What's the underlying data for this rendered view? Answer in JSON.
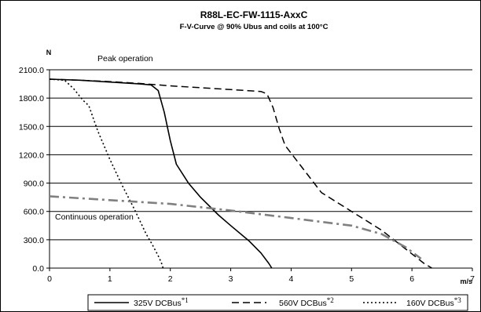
{
  "chart_data": {
    "type": "line",
    "title": "R88L-EC-FW-1115-AxxC",
    "subtitle": "F-V-Curve @ 90% Ubus and coils at 100°C",
    "ylabel": "N",
    "xlabel": "m/s",
    "xlim": [
      0,
      7
    ],
    "ylim": [
      0,
      2100
    ],
    "x_ticks": [
      "0",
      "1",
      "2",
      "3",
      "4",
      "5",
      "6",
      "7"
    ],
    "y_ticks": [
      "0.0",
      "300.0",
      "600.0",
      "900.0",
      "1200.0",
      "1500.0",
      "1800.0",
      "2100.0"
    ],
    "grid": "horizontal",
    "annotations": {
      "peak": "Peak operation",
      "continuous": "Continuous operation"
    },
    "legend_position": "bottom",
    "series": [
      {
        "name": "325V DCBus",
        "footnote": "*1",
        "style": "solid",
        "color": "#000000",
        "points": [
          [
            0,
            2000
          ],
          [
            0.5,
            1990
          ],
          [
            1.0,
            1970
          ],
          [
            1.5,
            1950
          ],
          [
            1.68,
            1940
          ],
          [
            1.8,
            1880
          ],
          [
            1.9,
            1650
          ],
          [
            2.0,
            1350
          ],
          [
            2.1,
            1100
          ],
          [
            2.3,
            900
          ],
          [
            2.5,
            750
          ],
          [
            2.8,
            560
          ],
          [
            3.0,
            450
          ],
          [
            3.3,
            290
          ],
          [
            3.5,
            160
          ],
          [
            3.63,
            50
          ],
          [
            3.68,
            0
          ]
        ]
      },
      {
        "name": "560V DCBus",
        "footnote": "*2",
        "style": "dashed",
        "color": "#000000",
        "points": [
          [
            0,
            2000
          ],
          [
            0.5,
            1990
          ],
          [
            1.0,
            1975
          ],
          [
            1.5,
            1955
          ],
          [
            2.0,
            1930
          ],
          [
            2.5,
            1910
          ],
          [
            3.0,
            1890
          ],
          [
            3.5,
            1870
          ],
          [
            3.6,
            1845
          ],
          [
            3.7,
            1700
          ],
          [
            3.8,
            1480
          ],
          [
            3.9,
            1300
          ],
          [
            4.2,
            1050
          ],
          [
            4.5,
            800
          ],
          [
            5.0,
            600
          ],
          [
            5.5,
            400
          ],
          [
            5.9,
            200
          ],
          [
            6.2,
            50
          ],
          [
            6.33,
            0
          ]
        ]
      },
      {
        "name": "160V DCBus",
        "footnote": "*3",
        "style": "dotted",
        "color": "#000000",
        "points": [
          [
            0,
            2000
          ],
          [
            0.25,
            1990
          ],
          [
            0.4,
            1900
          ],
          [
            0.55,
            1780
          ],
          [
            0.65,
            1720
          ],
          [
            0.8,
            1450
          ],
          [
            1.0,
            1150
          ],
          [
            1.2,
            880
          ],
          [
            1.4,
            630
          ],
          [
            1.6,
            360
          ],
          [
            1.7,
            250
          ],
          [
            1.8,
            130
          ],
          [
            1.85,
            60
          ],
          [
            1.88,
            0
          ]
        ]
      },
      {
        "style": "dashdot-gray",
        "color": "#808080",
        "points": [
          [
            0,
            760
          ],
          [
            1,
            720
          ],
          [
            2,
            680
          ],
          [
            3,
            610
          ],
          [
            4,
            530
          ],
          [
            4.5,
            490
          ],
          [
            5.0,
            450
          ],
          [
            5.5,
            360
          ],
          [
            5.9,
            220
          ],
          [
            6.15,
            100
          ]
        ]
      }
    ]
  }
}
